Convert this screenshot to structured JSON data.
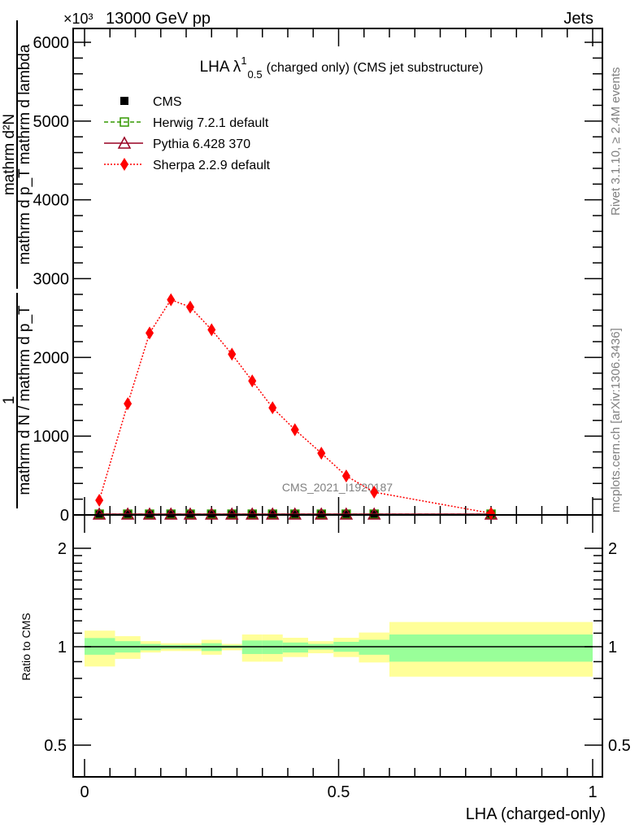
{
  "header": {
    "energy": "13000 GeV pp",
    "process": "Jets",
    "exponent": "×10³"
  },
  "side_text": {
    "rivet": "Rivet 3.1.10, ≥ 2.4M events",
    "mcplots": "mcplots.cern.ch [arXiv:1306.3436]"
  },
  "watermark": "CMS_2021_I1920187",
  "chart_data": [
    {
      "type": "line",
      "title": "LHA λ",
      "title_sup": "1",
      "title_sub": "0.5",
      "title_suffix": "(charged only) (CMS jet substructure)",
      "ylabel": {
        "frac1_num": "1",
        "frac1_den": "mathrm d N / mathrm d p_T",
        "frac2_num": "mathrm d²N",
        "frac2_den": "mathrm d p_T mathrm d lambda"
      },
      "xlim": [
        0,
        1
      ],
      "ylim": [
        0,
        6100
      ],
      "yticks": [
        0,
        1000,
        2000,
        3000,
        4000,
        5000,
        6000
      ],
      "ytick_labels": [
        "0",
        "1000",
        "2000",
        "3000",
        "4000",
        "5000",
        "6000"
      ],
      "legend_position": "top-left",
      "x": [
        0.029,
        0.085,
        0.128,
        0.17,
        0.208,
        0.25,
        0.29,
        0.33,
        0.37,
        0.414,
        0.466,
        0.515,
        0.57,
        0.8
      ],
      "series": [
        {
          "name": "CMS",
          "color": "#000000",
          "marker": "square",
          "values": [
            10,
            10,
            10,
            10,
            10,
            10,
            10,
            10,
            10,
            10,
            10,
            10,
            10,
            10
          ]
        },
        {
          "name": "Herwig 7.2.1 default",
          "color": "#339900",
          "marker": "open-square",
          "line": "dashed",
          "values": [
            10,
            10,
            10,
            10,
            10,
            10,
            10,
            10,
            10,
            10,
            10,
            10,
            10,
            10
          ]
        },
        {
          "name": "Pythia 6.428 370",
          "color": "#990022",
          "marker": "open-triangle",
          "line": "solid",
          "values": [
            10,
            10,
            10,
            10,
            10,
            10,
            10,
            10,
            10,
            10,
            10,
            10,
            10,
            10
          ]
        },
        {
          "name": "Sherpa 2.2.9 default",
          "color": "#ff0000",
          "marker": "diamond",
          "line": "dotted",
          "values": [
            186,
            1412,
            2309,
            2732,
            2639,
            2351,
            2041,
            1701,
            1361,
            1082,
            784,
            495,
            289,
            21
          ]
        }
      ]
    },
    {
      "type": "area",
      "ylabel": "Ratio to CMS",
      "xlabel": "LHA (charged-only)",
      "yscale": "log",
      "ylim": [
        0.42,
        2.3
      ],
      "yticks": [
        0.5,
        1,
        2
      ],
      "ytick_labels": [
        "0.5",
        "1",
        "2"
      ],
      "xticks": [
        0,
        0.5,
        1
      ],
      "xtick_labels": [
        "0",
        "0.5",
        "1"
      ],
      "bin_edges": [
        0,
        0.06,
        0.11,
        0.15,
        0.19,
        0.23,
        0.27,
        0.31,
        0.35,
        0.39,
        0.44,
        0.49,
        0.54,
        0.6,
        1.0
      ],
      "stat_band": {
        "color": "#99ff99",
        "up": [
          1.063,
          1.04,
          1.02,
          1.013,
          1.013,
          1.025,
          1.01,
          1.045,
          1.045,
          1.03,
          1.02,
          1.035,
          1.05,
          1.09
        ],
        "down": [
          0.945,
          0.96,
          0.975,
          0.985,
          0.985,
          0.97,
          0.99,
          0.95,
          0.95,
          0.96,
          0.98,
          0.965,
          0.945,
          0.9
        ]
      },
      "total_band": {
        "color": "#ffff99",
        "up": [
          1.12,
          1.077,
          1.04,
          1.025,
          1.025,
          1.05,
          1.02,
          1.09,
          1.09,
          1.065,
          1.04,
          1.065,
          1.105,
          1.19
        ],
        "down": [
          0.87,
          0.918,
          0.96,
          0.97,
          0.97,
          0.945,
          0.975,
          0.9,
          0.9,
          0.93,
          0.955,
          0.93,
          0.895,
          0.81
        ]
      }
    }
  ]
}
